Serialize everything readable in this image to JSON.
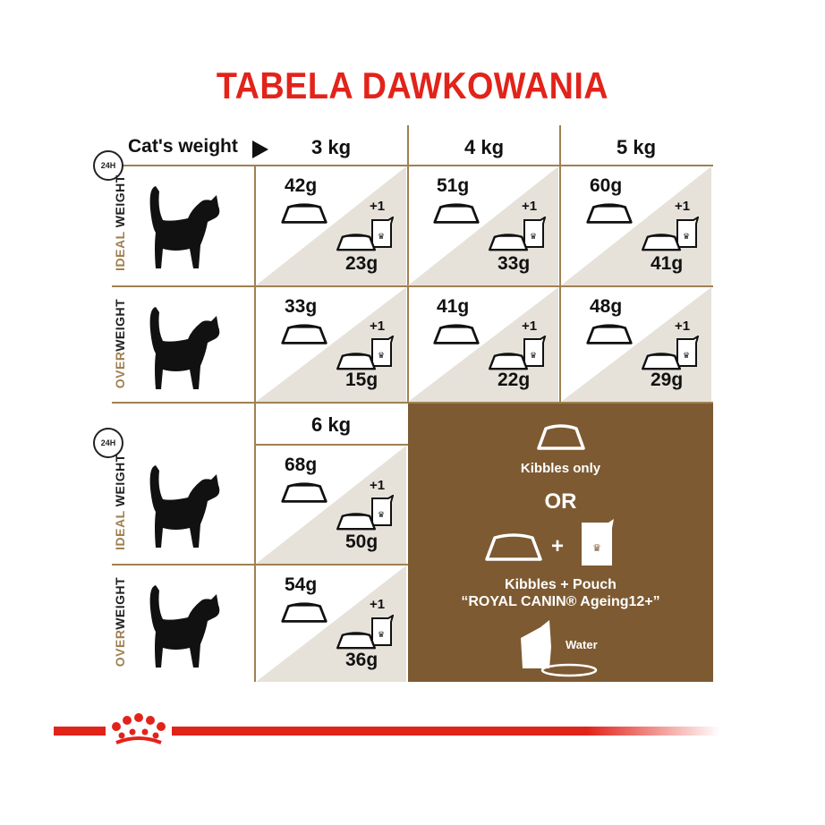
{
  "title": "TABELA DAWKOWANIA",
  "colors": {
    "title": "#e2231a",
    "lines": "#a08052",
    "panel": "#7d5a32",
    "shade": "#e6e2da"
  },
  "header": {
    "cats_weight": "Cat's weight",
    "clock": "24H"
  },
  "rows": {
    "ideal": [
      "IDEAL",
      " WEIGHT"
    ],
    "over": [
      "OVER",
      "WEIGHT"
    ]
  },
  "weights": [
    "3 kg",
    "4 kg",
    "5 kg",
    "6 kg"
  ],
  "plus_one": "+1",
  "doses": {
    "ideal": [
      {
        "kibbles": "42g",
        "mixed": "23g"
      },
      {
        "kibbles": "51g",
        "mixed": "33g"
      },
      {
        "kibbles": "60g",
        "mixed": "41g"
      },
      {
        "kibbles": "68g",
        "mixed": "50g"
      }
    ],
    "over": [
      {
        "kibbles": "33g",
        "mixed": "15g"
      },
      {
        "kibbles": "41g",
        "mixed": "22g"
      },
      {
        "kibbles": "48g",
        "mixed": "29g"
      },
      {
        "kibbles": "54g",
        "mixed": "36g"
      }
    ]
  },
  "legend": {
    "kibbles_only": "Kibbles only",
    "or": "OR",
    "plus": "+",
    "kibbles_pouch": "Kibbles + Pouch",
    "product": "“ROYAL CANIN® Ageing12+”",
    "water": "Water"
  },
  "icons": [
    "clock-24h-icon",
    "cat-silhouette-icon",
    "bowl-icon",
    "pouch-icon",
    "water-icon",
    "royal-canin-crown-logo"
  ]
}
